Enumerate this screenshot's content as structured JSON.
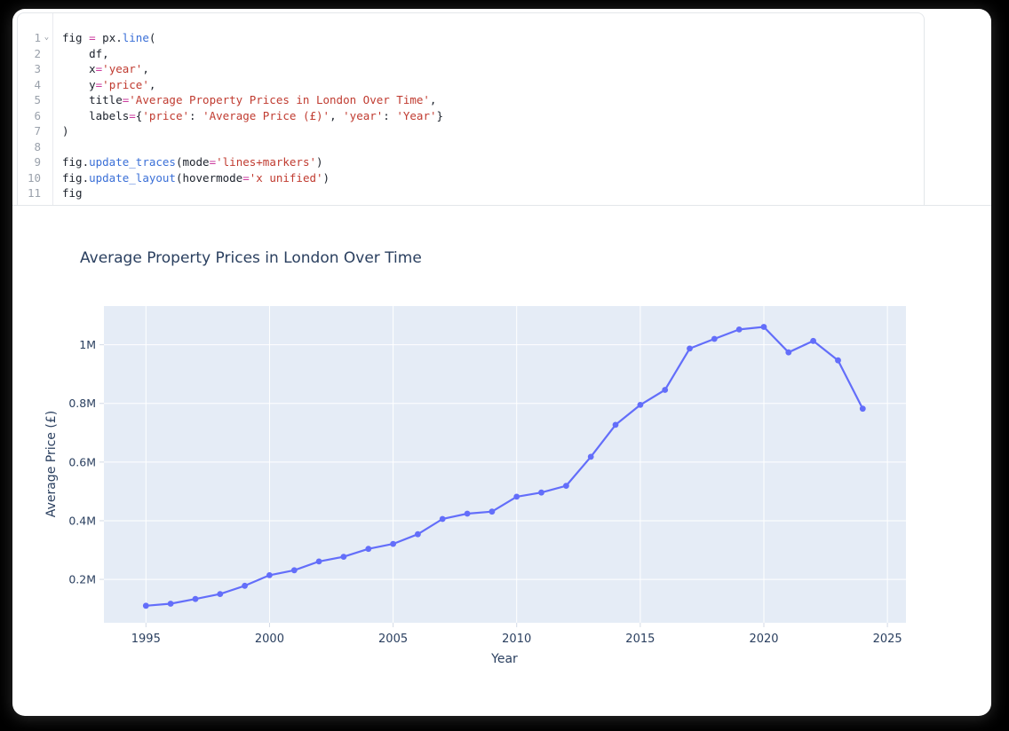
{
  "editor": {
    "lines": [
      {
        "num": "1",
        "fold": "⌄",
        "tokens": [
          {
            "t": "fig ",
            "c": "p"
          },
          {
            "t": "=",
            "c": "o"
          },
          {
            "t": " px.",
            "c": "p"
          },
          {
            "t": "line",
            "c": "f"
          },
          {
            "t": "(",
            "c": "p"
          }
        ]
      },
      {
        "num": "2",
        "fold": "",
        "tokens": [
          {
            "t": "    df,",
            "c": "p"
          }
        ]
      },
      {
        "num": "3",
        "fold": "",
        "tokens": [
          {
            "t": "    x",
            "c": "p"
          },
          {
            "t": "=",
            "c": "o"
          },
          {
            "t": "'year'",
            "c": "s"
          },
          {
            "t": ",",
            "c": "p"
          }
        ]
      },
      {
        "num": "4",
        "fold": "",
        "tokens": [
          {
            "t": "    y",
            "c": "p"
          },
          {
            "t": "=",
            "c": "o"
          },
          {
            "t": "'price'",
            "c": "s"
          },
          {
            "t": ",",
            "c": "p"
          }
        ]
      },
      {
        "num": "5",
        "fold": "",
        "tokens": [
          {
            "t": "    title",
            "c": "p"
          },
          {
            "t": "=",
            "c": "o"
          },
          {
            "t": "'Average Property Prices in London Over Time'",
            "c": "s"
          },
          {
            "t": ",",
            "c": "p"
          }
        ]
      },
      {
        "num": "6",
        "fold": "",
        "tokens": [
          {
            "t": "    labels",
            "c": "p"
          },
          {
            "t": "=",
            "c": "o"
          },
          {
            "t": "{",
            "c": "p"
          },
          {
            "t": "'price'",
            "c": "s"
          },
          {
            "t": ": ",
            "c": "p"
          },
          {
            "t": "'Average Price (£)'",
            "c": "s"
          },
          {
            "t": ", ",
            "c": "p"
          },
          {
            "t": "'year'",
            "c": "s"
          },
          {
            "t": ": ",
            "c": "p"
          },
          {
            "t": "'Year'",
            "c": "s"
          },
          {
            "t": "}",
            "c": "p"
          }
        ]
      },
      {
        "num": "7",
        "fold": "",
        "tokens": [
          {
            "t": ")",
            "c": "p"
          }
        ]
      },
      {
        "num": "8",
        "fold": "",
        "tokens": []
      },
      {
        "num": "9",
        "fold": "",
        "tokens": [
          {
            "t": "fig.",
            "c": "p"
          },
          {
            "t": "update_traces",
            "c": "f"
          },
          {
            "t": "(mode",
            "c": "p"
          },
          {
            "t": "=",
            "c": "o"
          },
          {
            "t": "'lines+markers'",
            "c": "s"
          },
          {
            "t": ")",
            "c": "p"
          }
        ]
      },
      {
        "num": "10",
        "fold": "",
        "tokens": [
          {
            "t": "fig.",
            "c": "p"
          },
          {
            "t": "update_layout",
            "c": "f"
          },
          {
            "t": "(hovermode",
            "c": "p"
          },
          {
            "t": "=",
            "c": "o"
          },
          {
            "t": "'x unified'",
            "c": "s"
          },
          {
            "t": ")",
            "c": "p"
          }
        ]
      },
      {
        "num": "11",
        "fold": "",
        "tokens": [
          {
            "t": "fig",
            "c": "p"
          }
        ]
      }
    ]
  },
  "chart_data": {
    "type": "line",
    "title": "Average Property Prices in London Over Time",
    "xlabel": "Year",
    "ylabel": "Average Price (£)",
    "mode": "lines+markers",
    "x": [
      1995,
      1996,
      1997,
      1998,
      1999,
      2000,
      2001,
      2002,
      2003,
      2004,
      2005,
      2006,
      2007,
      2008,
      2009,
      2010,
      2011,
      2012,
      2013,
      2014,
      2015,
      2016,
      2017,
      2018,
      2019,
      2020,
      2021,
      2022,
      2023,
      2024
    ],
    "y": [
      110000,
      117000,
      133000,
      150000,
      178000,
      214000,
      231000,
      261000,
      277000,
      304000,
      321000,
      354000,
      406000,
      424000,
      431000,
      482000,
      496000,
      519000,
      618000,
      727000,
      795000,
      846000,
      987000,
      1020000,
      1052000,
      1061000,
      974000,
      1013000,
      947000,
      782000
    ],
    "xlim": [
      1993.3,
      2025.75
    ],
    "ylim": [
      52000,
      1132000
    ],
    "xticks": [
      1995,
      2000,
      2005,
      2010,
      2015,
      2020,
      2025
    ],
    "yticks": [
      {
        "v": 200000,
        "label": "0.2M"
      },
      {
        "v": 400000,
        "label": "0.4M"
      },
      {
        "v": 600000,
        "label": "0.6M"
      },
      {
        "v": 800000,
        "label": "0.8M"
      },
      {
        "v": 1000000,
        "label": "1M"
      }
    ],
    "grid": true,
    "legend": "none",
    "line_color": "#636efa",
    "marker_color": "#636efa",
    "plot_bg": "#e5ecf6",
    "grid_color": "#ffffff",
    "tick_color": "#d3dae6",
    "text_color": "#2a3f5f"
  }
}
